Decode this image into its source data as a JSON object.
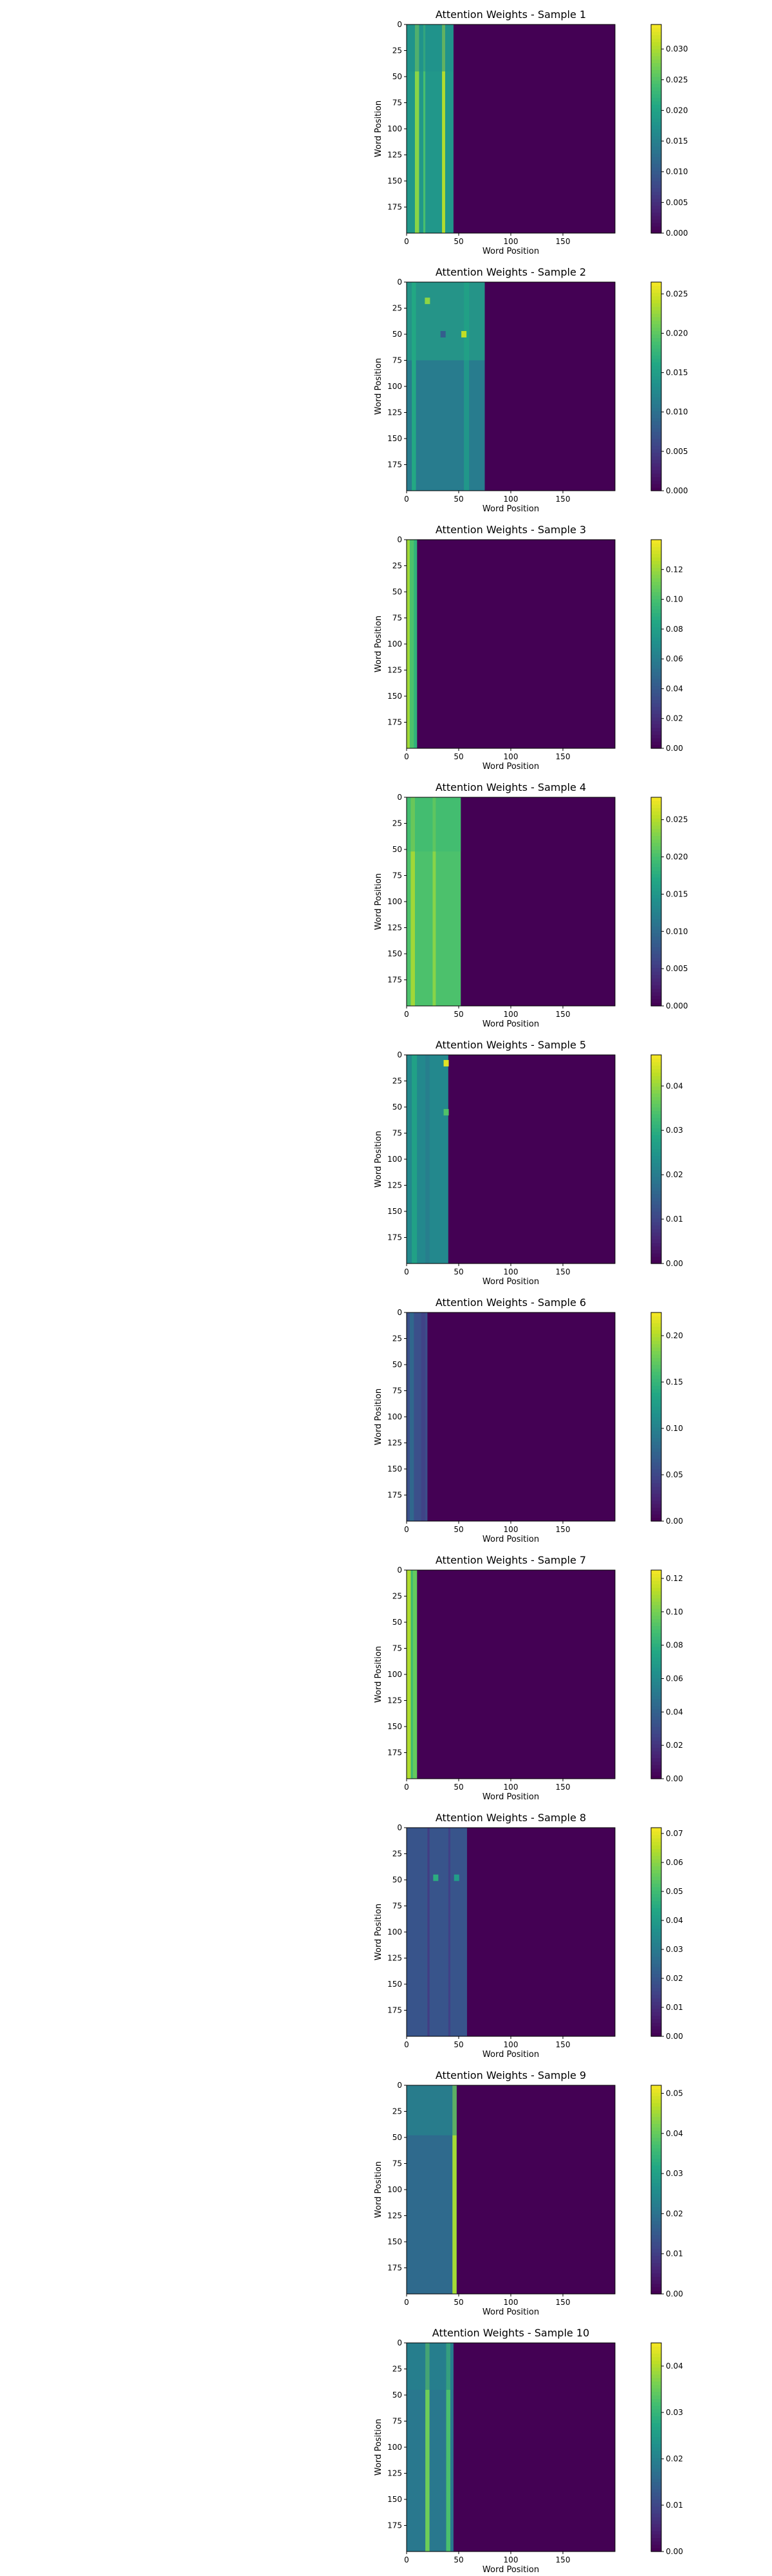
{
  "colors": {
    "viridis_low": "#440154",
    "viridis_mid": "#21918c",
    "viridis_high": "#fde725",
    "axis": "#000000"
  },
  "chart_data": [
    {
      "type": "heatmap",
      "title": "Attention Weights - Sample 1",
      "xlabel": "Word Position",
      "ylabel": "Word Position",
      "xticks": [
        0,
        50,
        100,
        150
      ],
      "yticks": [
        0,
        25,
        50,
        75,
        100,
        125,
        150,
        175
      ],
      "xlim": [
        0,
        200
      ],
      "ylim": [
        0,
        200
      ],
      "active_width": 45,
      "colorbar": {
        "min": 0.0,
        "max": 0.034,
        "ticks": [
          0.0,
          0.005,
          0.01,
          0.015,
          0.02,
          0.025,
          0.03
        ],
        "tick_labels": [
          "0.000",
          "0.005",
          "0.010",
          "0.015",
          "0.020",
          "0.025",
          "0.030"
        ]
      },
      "pattern": "bands",
      "bands": [
        {
          "start": 0,
          "end": 45,
          "value": 0.018
        },
        {
          "start": 8,
          "end": 12,
          "value": 0.028
        },
        {
          "start": 16,
          "end": 18,
          "value": 0.024
        },
        {
          "start": 34,
          "end": 37,
          "value": 0.03
        }
      ],
      "top_block": {
        "rows": 45,
        "value": 0.017
      }
    },
    {
      "type": "heatmap",
      "title": "Attention Weights - Sample 2",
      "xlabel": "Word Position",
      "ylabel": "Word Position",
      "xticks": [
        0,
        50,
        100,
        150
      ],
      "yticks": [
        0,
        25,
        50,
        75,
        100,
        125,
        150,
        175
      ],
      "xlim": [
        0,
        200
      ],
      "ylim": [
        0,
        200
      ],
      "active_width": 75,
      "colorbar": {
        "min": 0.0,
        "max": 0.0265,
        "ticks": [
          0.0,
          0.005,
          0.01,
          0.015,
          0.02,
          0.025
        ],
        "tick_labels": [
          "0.000",
          "0.005",
          "0.010",
          "0.015",
          "0.020",
          "0.025"
        ]
      },
      "pattern": "bands",
      "bands": [
        {
          "start": 0,
          "end": 75,
          "value": 0.011
        },
        {
          "start": 5,
          "end": 9,
          "value": 0.016
        },
        {
          "start": 55,
          "end": 60,
          "value": 0.014
        }
      ],
      "top_block": {
        "rows": 75,
        "value": 0.016
      },
      "hotspots": [
        {
          "x": 20,
          "y": 18,
          "value": 0.022
        },
        {
          "x": 55,
          "y": 50,
          "value": 0.024
        },
        {
          "x": 35,
          "y": 50,
          "value": 0.008
        }
      ]
    },
    {
      "type": "heatmap",
      "title": "Attention Weights - Sample 3",
      "xlabel": "Word Position",
      "ylabel": "Word Position",
      "xticks": [
        0,
        50,
        100,
        150
      ],
      "yticks": [
        0,
        25,
        50,
        75,
        100,
        125,
        150,
        175
      ],
      "xlim": [
        0,
        200
      ],
      "ylim": [
        0,
        200
      ],
      "active_width": 10,
      "colorbar": {
        "min": 0.0,
        "max": 0.14,
        "ticks": [
          0.0,
          0.02,
          0.04,
          0.06,
          0.08,
          0.1,
          0.12
        ],
        "tick_labels": [
          "0.00",
          "0.02",
          "0.04",
          "0.06",
          "0.08",
          "0.10",
          "0.12"
        ]
      },
      "pattern": "bands",
      "bands": [
        {
          "start": 0,
          "end": 10,
          "value": 0.1
        },
        {
          "start": 0,
          "end": 3,
          "value": 0.12
        },
        {
          "start": 7,
          "end": 10,
          "value": 0.09
        }
      ]
    },
    {
      "type": "heatmap",
      "title": "Attention Weights - Sample 4",
      "xlabel": "Word Position",
      "ylabel": "Word Position",
      "xticks": [
        0,
        50,
        100,
        150
      ],
      "yticks": [
        0,
        25,
        50,
        75,
        100,
        125,
        150,
        175
      ],
      "xlim": [
        0,
        200
      ],
      "ylim": [
        0,
        200
      ],
      "active_width": 52,
      "colorbar": {
        "min": 0.0,
        "max": 0.028,
        "ticks": [
          0.0,
          0.005,
          0.01,
          0.015,
          0.02,
          0.025
        ],
        "tick_labels": [
          "0.000",
          "0.005",
          "0.010",
          "0.015",
          "0.020",
          "0.025"
        ]
      },
      "pattern": "bands",
      "bands": [
        {
          "start": 0,
          "end": 52,
          "value": 0.02
        },
        {
          "start": 4,
          "end": 8,
          "value": 0.024
        },
        {
          "start": 25,
          "end": 28,
          "value": 0.023
        }
      ],
      "top_block": {
        "rows": 52,
        "value": 0.019
      }
    },
    {
      "type": "heatmap",
      "title": "Attention Weights - Sample 5",
      "xlabel": "Word Position",
      "ylabel": "Word Position",
      "xticks": [
        0,
        50,
        100,
        150
      ],
      "yticks": [
        0,
        25,
        50,
        75,
        100,
        125,
        150,
        175
      ],
      "xlim": [
        0,
        200
      ],
      "ylim": [
        0,
        200
      ],
      "active_width": 40,
      "colorbar": {
        "min": 0.0,
        "max": 0.047,
        "ticks": [
          0.0,
          0.01,
          0.02,
          0.03,
          0.04
        ],
        "tick_labels": [
          "0.00",
          "0.01",
          "0.02",
          "0.03",
          "0.04"
        ]
      },
      "pattern": "bands",
      "bands": [
        {
          "start": 0,
          "end": 40,
          "value": 0.022
        },
        {
          "start": 5,
          "end": 10,
          "value": 0.027
        },
        {
          "start": 18,
          "end": 22,
          "value": 0.02
        }
      ],
      "hotspots": [
        {
          "x": 38,
          "y": 8,
          "value": 0.045
        },
        {
          "x": 38,
          "y": 55,
          "value": 0.034
        }
      ]
    },
    {
      "type": "heatmap",
      "title": "Attention Weights - Sample 6",
      "xlabel": "Word Position",
      "ylabel": "Word Position",
      "xticks": [
        0,
        50,
        100,
        150
      ],
      "yticks": [
        0,
        25,
        50,
        75,
        100,
        125,
        150,
        175
      ],
      "xlim": [
        0,
        200
      ],
      "ylim": [
        0,
        200
      ],
      "active_width": 20,
      "colorbar": {
        "min": 0.0,
        "max": 0.225,
        "ticks": [
          0.0,
          0.05,
          0.1,
          0.15,
          0.2
        ],
        "tick_labels": [
          "0.00",
          "0.05",
          "0.10",
          "0.15",
          "0.20"
        ]
      },
      "pattern": "bands",
      "bands": [
        {
          "start": 0,
          "end": 20,
          "value": 0.055
        },
        {
          "start": 3,
          "end": 7,
          "value": 0.075
        },
        {
          "start": 14,
          "end": 18,
          "value": 0.045
        }
      ]
    },
    {
      "type": "heatmap",
      "title": "Attention Weights - Sample 7",
      "xlabel": "Word Position",
      "ylabel": "Word Position",
      "xticks": [
        0,
        50,
        100,
        150
      ],
      "yticks": [
        0,
        25,
        50,
        75,
        100,
        125,
        150,
        175
      ],
      "xlim": [
        0,
        200
      ],
      "ylim": [
        0,
        200
      ],
      "active_width": 10,
      "colorbar": {
        "min": 0.0,
        "max": 0.125,
        "ticks": [
          0.0,
          0.02,
          0.04,
          0.06,
          0.08,
          0.1,
          0.12
        ],
        "tick_labels": [
          "0.00",
          "0.02",
          "0.04",
          "0.06",
          "0.08",
          "0.10",
          "0.12"
        ]
      },
      "pattern": "bands",
      "bands": [
        {
          "start": 0,
          "end": 10,
          "value": 0.085
        },
        {
          "start": 0,
          "end": 4,
          "value": 0.11
        },
        {
          "start": 6,
          "end": 10,
          "value": 0.095
        }
      ]
    },
    {
      "type": "heatmap",
      "title": "Attention Weights - Sample 8",
      "xlabel": "Word Position",
      "ylabel": "Word Position",
      "xticks": [
        0,
        50,
        100,
        150
      ],
      "yticks": [
        0,
        25,
        50,
        75,
        100,
        125,
        150,
        175
      ],
      "xlim": [
        0,
        200
      ],
      "ylim": [
        0,
        200
      ],
      "active_width": 58,
      "colorbar": {
        "min": 0.0,
        "max": 0.072,
        "ticks": [
          0.0,
          0.01,
          0.02,
          0.03,
          0.04,
          0.05,
          0.06,
          0.07
        ],
        "tick_labels": [
          "0.00",
          "0.01",
          "0.02",
          "0.03",
          "0.04",
          "0.05",
          "0.06",
          "0.07"
        ]
      },
      "pattern": "bands",
      "bands": [
        {
          "start": 0,
          "end": 58,
          "value": 0.019
        },
        {
          "start": 20,
          "end": 22,
          "value": 0.013
        },
        {
          "start": 40,
          "end": 42,
          "value": 0.014
        }
      ],
      "hotspots": [
        {
          "x": 28,
          "y": 48,
          "value": 0.045
        },
        {
          "x": 48,
          "y": 48,
          "value": 0.04
        }
      ]
    },
    {
      "type": "heatmap",
      "title": "Attention Weights - Sample 9",
      "xlabel": "Word Position",
      "ylabel": "Word Position",
      "xticks": [
        0,
        50,
        100,
        150
      ],
      "yticks": [
        0,
        25,
        50,
        75,
        100,
        125,
        150,
        175
      ],
      "xlim": [
        0,
        200
      ],
      "ylim": [
        0,
        200
      ],
      "active_width": 48,
      "colorbar": {
        "min": 0.0,
        "max": 0.052,
        "ticks": [
          0.0,
          0.01,
          0.02,
          0.03,
          0.04,
          0.05
        ],
        "tick_labels": [
          "0.00",
          "0.01",
          "0.02",
          "0.03",
          "0.04",
          "0.05"
        ]
      },
      "pattern": "bands",
      "bands": [
        {
          "start": 0,
          "end": 48,
          "value": 0.018
        },
        {
          "start": 44,
          "end": 48,
          "value": 0.045
        }
      ],
      "top_block": {
        "rows": 48,
        "value": 0.025
      }
    },
    {
      "type": "heatmap",
      "title": "Attention Weights - Sample 10",
      "xlabel": "Word Position",
      "ylabel": "Word Position",
      "xticks": [
        0,
        50,
        100,
        150
      ],
      "yticks": [
        0,
        25,
        50,
        75,
        100,
        125,
        150,
        175
      ],
      "xlim": [
        0,
        200
      ],
      "ylim": [
        0,
        200
      ],
      "active_width": 45,
      "colorbar": {
        "min": 0.0,
        "max": 0.045,
        "ticks": [
          0.0,
          0.01,
          0.02,
          0.03,
          0.04
        ],
        "tick_labels": [
          "0.00",
          "0.01",
          "0.02",
          "0.03",
          "0.04"
        ]
      },
      "pattern": "bands",
      "bands": [
        {
          "start": 0,
          "end": 45,
          "value": 0.018
        },
        {
          "start": 18,
          "end": 22,
          "value": 0.035
        },
        {
          "start": 38,
          "end": 42,
          "value": 0.032
        }
      ],
      "top_block": {
        "rows": 45,
        "value": 0.02
      }
    }
  ]
}
